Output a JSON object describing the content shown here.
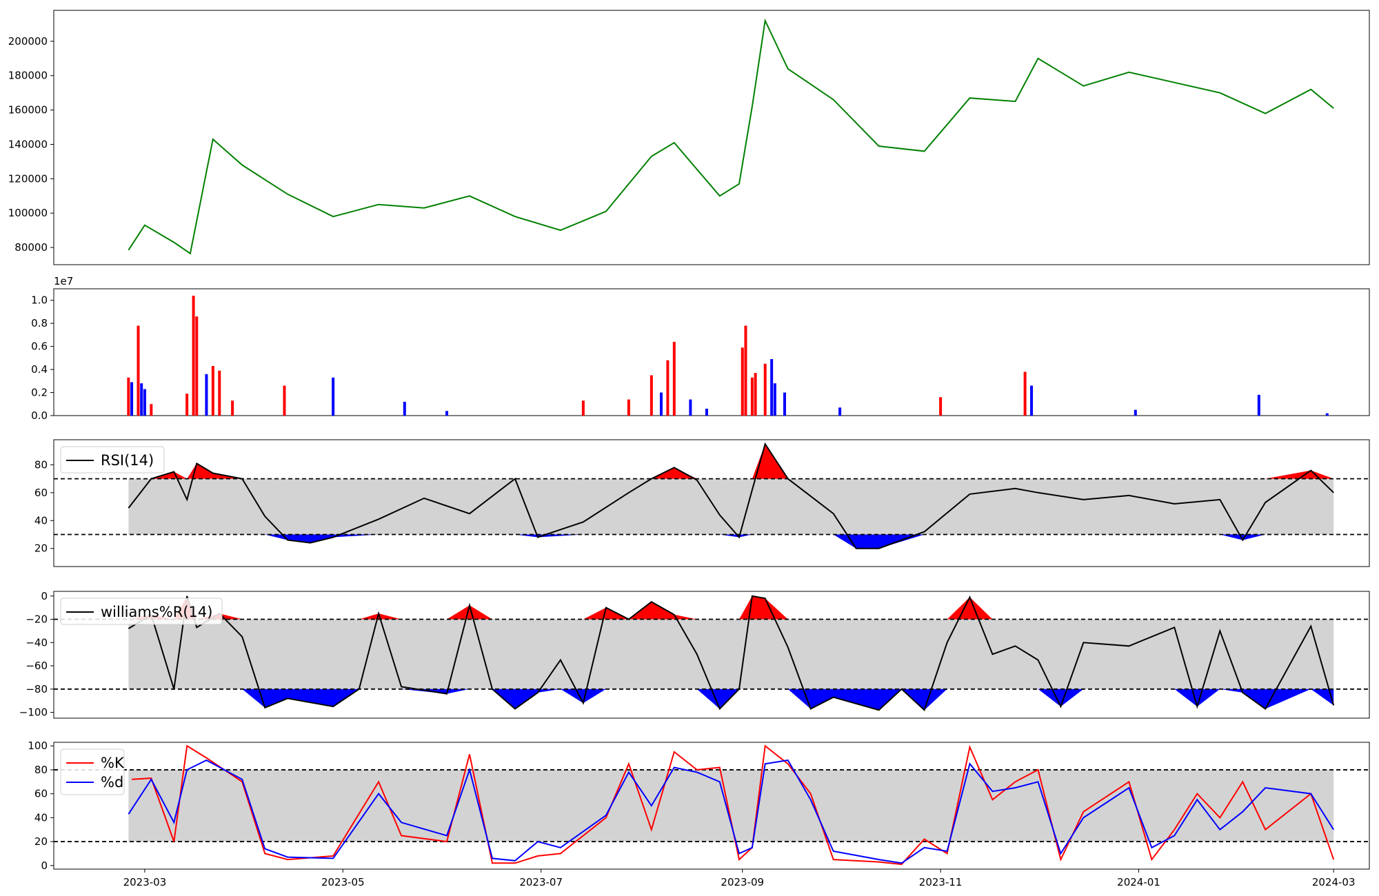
{
  "chart_data": [
    {
      "type": "line",
      "panel": "price",
      "color": "#008000",
      "xlim": [
        "2023-02-01",
        "2024-03-12"
      ],
      "ylim": [
        70000,
        218000
      ],
      "yticks": [
        80000,
        100000,
        120000,
        140000,
        160000,
        180000,
        200000
      ],
      "yticklabels": [
        "80000",
        "100000",
        "120000",
        "140000",
        "160000",
        "180000",
        "200000"
      ],
      "x": [
        "2023-02-24",
        "2023-03-01",
        "2023-03-10",
        "2023-03-15",
        "2023-03-22",
        "2023-03-31",
        "2023-04-14",
        "2023-04-28",
        "2023-05-12",
        "2023-05-26",
        "2023-06-09",
        "2023-06-23",
        "2023-07-07",
        "2023-07-21",
        "2023-08-04",
        "2023-08-11",
        "2023-08-25",
        "2023-08-31",
        "2023-09-04",
        "2023-09-08",
        "2023-09-15",
        "2023-09-29",
        "2023-10-13",
        "2023-10-27",
        "2023-11-10",
        "2023-11-24",
        "2023-12-01",
        "2023-12-15",
        "2023-12-29",
        "2024-01-12",
        "2024-01-26",
        "2024-02-09",
        "2024-02-23",
        "2024-03-01"
      ],
      "y": [
        78500,
        93000,
        83000,
        76500,
        143000,
        128000,
        111000,
        98000,
        105000,
        103000,
        110000,
        98000,
        90000,
        101000,
        133000,
        141000,
        110000,
        117000,
        162000,
        212000,
        184000,
        166000,
        139000,
        136000,
        167000,
        165000,
        190000,
        174000,
        182000,
        176000,
        170000,
        158000,
        172000,
        161000
      ]
    },
    {
      "type": "bar",
      "panel": "volume",
      "scale_label": "1e7",
      "colors": {
        "up": "#ff0000",
        "down": "#0000ff"
      },
      "ylim": [
        0,
        1.1
      ],
      "yticks": [
        0.0,
        0.2,
        0.4,
        0.6,
        0.8,
        1.0
      ],
      "yticklabels": [
        "0.0",
        "0.2",
        "0.4",
        "0.6",
        "0.8",
        "1.0"
      ],
      "x": [
        "2023-02-24",
        "2023-02-25",
        "2023-02-27",
        "2023-02-28",
        "2023-03-01",
        "2023-03-03",
        "2023-03-14",
        "2023-03-16",
        "2023-03-17",
        "2023-03-20",
        "2023-03-22",
        "2023-03-24",
        "2023-03-28",
        "2023-04-13",
        "2023-04-28",
        "2023-05-20",
        "2023-06-02",
        "2023-07-14",
        "2023-07-28",
        "2023-08-04",
        "2023-08-07",
        "2023-08-09",
        "2023-08-11",
        "2023-08-16",
        "2023-08-21",
        "2023-09-01",
        "2023-09-02",
        "2023-09-04",
        "2023-09-05",
        "2023-09-08",
        "2023-09-10",
        "2023-09-11",
        "2023-09-14",
        "2023-10-01",
        "2023-11-01",
        "2023-11-27",
        "2023-11-29",
        "2023-12-31",
        "2024-02-07",
        "2024-02-28"
      ],
      "values": [
        0.33,
        0.29,
        0.78,
        0.28,
        0.23,
        0.1,
        0.19,
        1.04,
        0.86,
        0.36,
        0.43,
        0.39,
        0.13,
        0.26,
        0.33,
        0.12,
        0.04,
        0.13,
        0.14,
        0.35,
        0.2,
        0.48,
        0.64,
        0.14,
        0.06,
        0.59,
        0.78,
        0.33,
        0.37,
        0.45,
        0.49,
        0.28,
        0.2,
        0.07,
        0.16,
        0.38,
        0.26,
        0.05,
        0.18,
        0.02
      ],
      "direction": [
        "up",
        "down",
        "up",
        "down",
        "down",
        "up",
        "up",
        "up",
        "up",
        "down",
        "up",
        "up",
        "up",
        "up",
        "down",
        "down",
        "down",
        "up",
        "up",
        "up",
        "down",
        "up",
        "up",
        "down",
        "down",
        "up",
        "up",
        "up",
        "up",
        "up",
        "down",
        "down",
        "down",
        "down",
        "up",
        "up",
        "down",
        "down",
        "down",
        "down"
      ]
    },
    {
      "type": "line",
      "panel": "rsi",
      "legend": [
        "RSI(14)"
      ],
      "legend_position": "upper-left",
      "ylim": [
        7,
        98
      ],
      "yticks": [
        20,
        40,
        60,
        80
      ],
      "yticklabels": [
        "20",
        "40",
        "60",
        "80"
      ],
      "bands": {
        "upper": 70,
        "lower": 30,
        "colors": {
          "band": "#d3d3d3",
          "over": "#ff0000",
          "under": "#0000ff"
        }
      },
      "x": [
        "2023-02-24",
        "2023-03-03",
        "2023-03-10",
        "2023-03-14",
        "2023-03-17",
        "2023-03-22",
        "2023-03-31",
        "2023-04-07",
        "2023-04-14",
        "2023-04-21",
        "2023-04-28",
        "2023-05-12",
        "2023-05-26",
        "2023-06-09",
        "2023-06-23",
        "2023-06-30",
        "2023-07-14",
        "2023-07-28",
        "2023-08-04",
        "2023-08-11",
        "2023-08-18",
        "2023-08-25",
        "2023-08-31",
        "2023-09-04",
        "2023-09-08",
        "2023-09-15",
        "2023-09-29",
        "2023-10-06",
        "2023-10-13",
        "2023-10-27",
        "2023-11-10",
        "2023-11-24",
        "2023-12-01",
        "2023-12-15",
        "2023-12-29",
        "2024-01-12",
        "2024-01-26",
        "2024-02-02",
        "2024-02-09",
        "2024-02-23",
        "2024-03-01"
      ],
      "y": [
        49,
        70,
        75,
        55,
        81,
        74,
        70,
        43,
        26,
        24,
        28,
        41,
        56,
        45,
        70,
        28,
        39,
        60,
        70,
        78,
        69,
        44,
        28,
        62,
        95,
        70,
        45,
        20,
        20,
        32,
        59,
        63,
        60,
        55,
        58,
        52,
        55,
        26,
        53,
        76,
        60
      ]
    },
    {
      "type": "line",
      "panel": "williams",
      "legend": [
        "williams%R(14)"
      ],
      "legend_position": "upper-left",
      "ylim": [
        -105,
        4
      ],
      "yticks": [
        0,
        -20,
        -40,
        -60,
        -80,
        -100
      ],
      "yticklabels": [
        "0",
        "−20",
        "−40",
        "−60",
        "−80",
        "−100"
      ],
      "bands": {
        "upper": -20,
        "lower": -80,
        "colors": {
          "band": "#d3d3d3",
          "over": "#ff0000",
          "under": "#0000ff"
        }
      },
      "x": [
        "2023-02-24",
        "2023-03-03",
        "2023-03-10",
        "2023-03-14",
        "2023-03-17",
        "2023-03-24",
        "2023-03-31",
        "2023-04-07",
        "2023-04-14",
        "2023-04-28",
        "2023-05-06",
        "2023-05-12",
        "2023-05-19",
        "2023-06-02",
        "2023-06-09",
        "2023-06-16",
        "2023-06-23",
        "2023-06-30",
        "2023-07-07",
        "2023-07-14",
        "2023-07-21",
        "2023-07-28",
        "2023-08-04",
        "2023-08-11",
        "2023-08-18",
        "2023-08-25",
        "2023-08-31",
        "2023-09-04",
        "2023-09-08",
        "2023-09-15",
        "2023-09-22",
        "2023-09-29",
        "2023-10-13",
        "2023-10-20",
        "2023-10-27",
        "2023-11-03",
        "2023-11-10",
        "2023-11-17",
        "2023-11-24",
        "2023-12-01",
        "2023-12-08",
        "2023-12-15",
        "2023-12-29",
        "2024-01-12",
        "2024-01-19",
        "2024-01-26",
        "2024-02-02",
        "2024-02-09",
        "2024-02-23",
        "2024-03-01"
      ],
      "y": [
        -28,
        -16,
        -80,
        0,
        -27,
        -15,
        -35,
        -96,
        -88,
        -95,
        -80,
        -15,
        -78,
        -84,
        -8,
        -80,
        -97,
        -83,
        -55,
        -92,
        -10,
        -20,
        -5,
        -16,
        -50,
        -97,
        -80,
        0,
        -2,
        -44,
        -97,
        -87,
        -98,
        -80,
        -98,
        -40,
        -1,
        -50,
        -43,
        -55,
        -95,
        -40,
        -43,
        -27,
        -95,
        -30,
        -83,
        -97,
        -26,
        -94
      ]
    },
    {
      "type": "line",
      "panel": "stochastic",
      "legend": [
        "%K",
        "%d"
      ],
      "legend_position": "upper-left",
      "ylim": [
        -3,
        103
      ],
      "yticks": [
        0,
        20,
        40,
        60,
        80,
        100
      ],
      "yticklabels": [
        "0",
        "20",
        "40",
        "60",
        "80",
        "100"
      ],
      "xticks": [
        "2023-03-01",
        "2023-05-01",
        "2023-07-01",
        "2023-09-01",
        "2023-11-01",
        "2024-01-01",
        "2024-03-01"
      ],
      "xticklabels": [
        "2023-03",
        "2023-05",
        "2023-07",
        "2023-09",
        "2023-11",
        "2024-01",
        "2024-03"
      ],
      "bands": {
        "upper": 80,
        "lower": 20,
        "colors": {
          "band": "#d3d3d3"
        }
      },
      "series": [
        {
          "name": "%K",
          "color": "#ff0000",
          "x": [
            "2023-02-25",
            "2023-03-03",
            "2023-03-10",
            "2023-03-14",
            "2023-03-20",
            "2023-03-31",
            "2023-04-07",
            "2023-04-14",
            "2023-04-28",
            "2023-05-12",
            "2023-05-19",
            "2023-06-02",
            "2023-06-09",
            "2023-06-16",
            "2023-06-23",
            "2023-06-30",
            "2023-07-07",
            "2023-07-21",
            "2023-07-28",
            "2023-08-04",
            "2023-08-11",
            "2023-08-18",
            "2023-08-25",
            "2023-08-31",
            "2023-09-04",
            "2023-09-08",
            "2023-09-15",
            "2023-09-22",
            "2023-09-29",
            "2023-10-13",
            "2023-10-20",
            "2023-10-27",
            "2023-11-03",
            "2023-11-10",
            "2023-11-17",
            "2023-11-24",
            "2023-12-01",
            "2023-12-08",
            "2023-12-15",
            "2023-12-29",
            "2024-01-05",
            "2024-01-12",
            "2024-01-19",
            "2024-01-26",
            "2024-02-02",
            "2024-02-09",
            "2024-02-23",
            "2024-03-01"
          ],
          "y": [
            72,
            73,
            20,
            100,
            90,
            70,
            10,
            5,
            8,
            70,
            25,
            20,
            93,
            2,
            2,
            8,
            10,
            40,
            85,
            30,
            95,
            80,
            82,
            5,
            15,
            100,
            85,
            60,
            5,
            3,
            1,
            22,
            10,
            99,
            55,
            70,
            80,
            5,
            45,
            70,
            5,
            30,
            60,
            40,
            70,
            30,
            60,
            5
          ]
        },
        {
          "name": "%d",
          "color": "#0000ff",
          "x": [
            "2023-02-24",
            "2023-03-03",
            "2023-03-10",
            "2023-03-14",
            "2023-03-20",
            "2023-03-31",
            "2023-04-07",
            "2023-04-14",
            "2023-04-28",
            "2023-05-12",
            "2023-05-19",
            "2023-06-02",
            "2023-06-09",
            "2023-06-16",
            "2023-06-23",
            "2023-06-30",
            "2023-07-07",
            "2023-07-21",
            "2023-07-28",
            "2023-08-04",
            "2023-08-11",
            "2023-08-18",
            "2023-08-25",
            "2023-08-31",
            "2023-09-04",
            "2023-09-08",
            "2023-09-15",
            "2023-09-22",
            "2023-09-29",
            "2023-10-13",
            "2023-10-20",
            "2023-10-27",
            "2023-11-03",
            "2023-11-10",
            "2023-11-17",
            "2023-11-24",
            "2023-12-01",
            "2023-12-08",
            "2023-12-15",
            "2023-12-29",
            "2024-01-05",
            "2024-01-12",
            "2024-01-19",
            "2024-01-26",
            "2024-02-02",
            "2024-02-09",
            "2024-02-23",
            "2024-03-01"
          ],
          "y": [
            43,
            72,
            36,
            80,
            88,
            72,
            14,
            7,
            6,
            60,
            36,
            25,
            80,
            6,
            4,
            20,
            15,
            42,
            78,
            50,
            82,
            78,
            70,
            10,
            15,
            85,
            88,
            55,
            12,
            5,
            2,
            15,
            12,
            85,
            62,
            65,
            70,
            10,
            40,
            65,
            15,
            25,
            55,
            30,
            45,
            65,
            60,
            30
          ]
        }
      ]
    }
  ]
}
